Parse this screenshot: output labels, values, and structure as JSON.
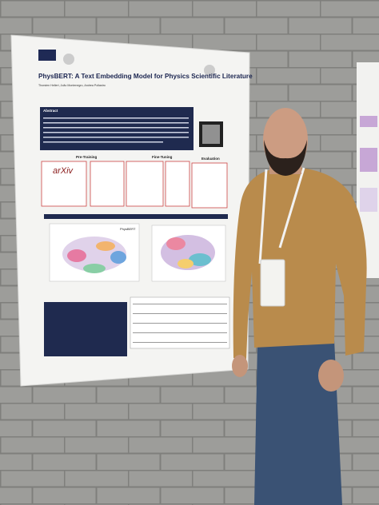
{
  "poster": {
    "title": "PhysBERT: A Text Embedding Model for Physics Scientific Literature",
    "authors": "Thorsten Hellert, João Montenegro, Andrea Pollastro",
    "abstract_heading": "Abstract",
    "pipeline": [
      "Pre-Training",
      "Fine-Tuning",
      "Evaluation"
    ],
    "logo": "arXiv",
    "plot_label": "PhysBERT"
  }
}
